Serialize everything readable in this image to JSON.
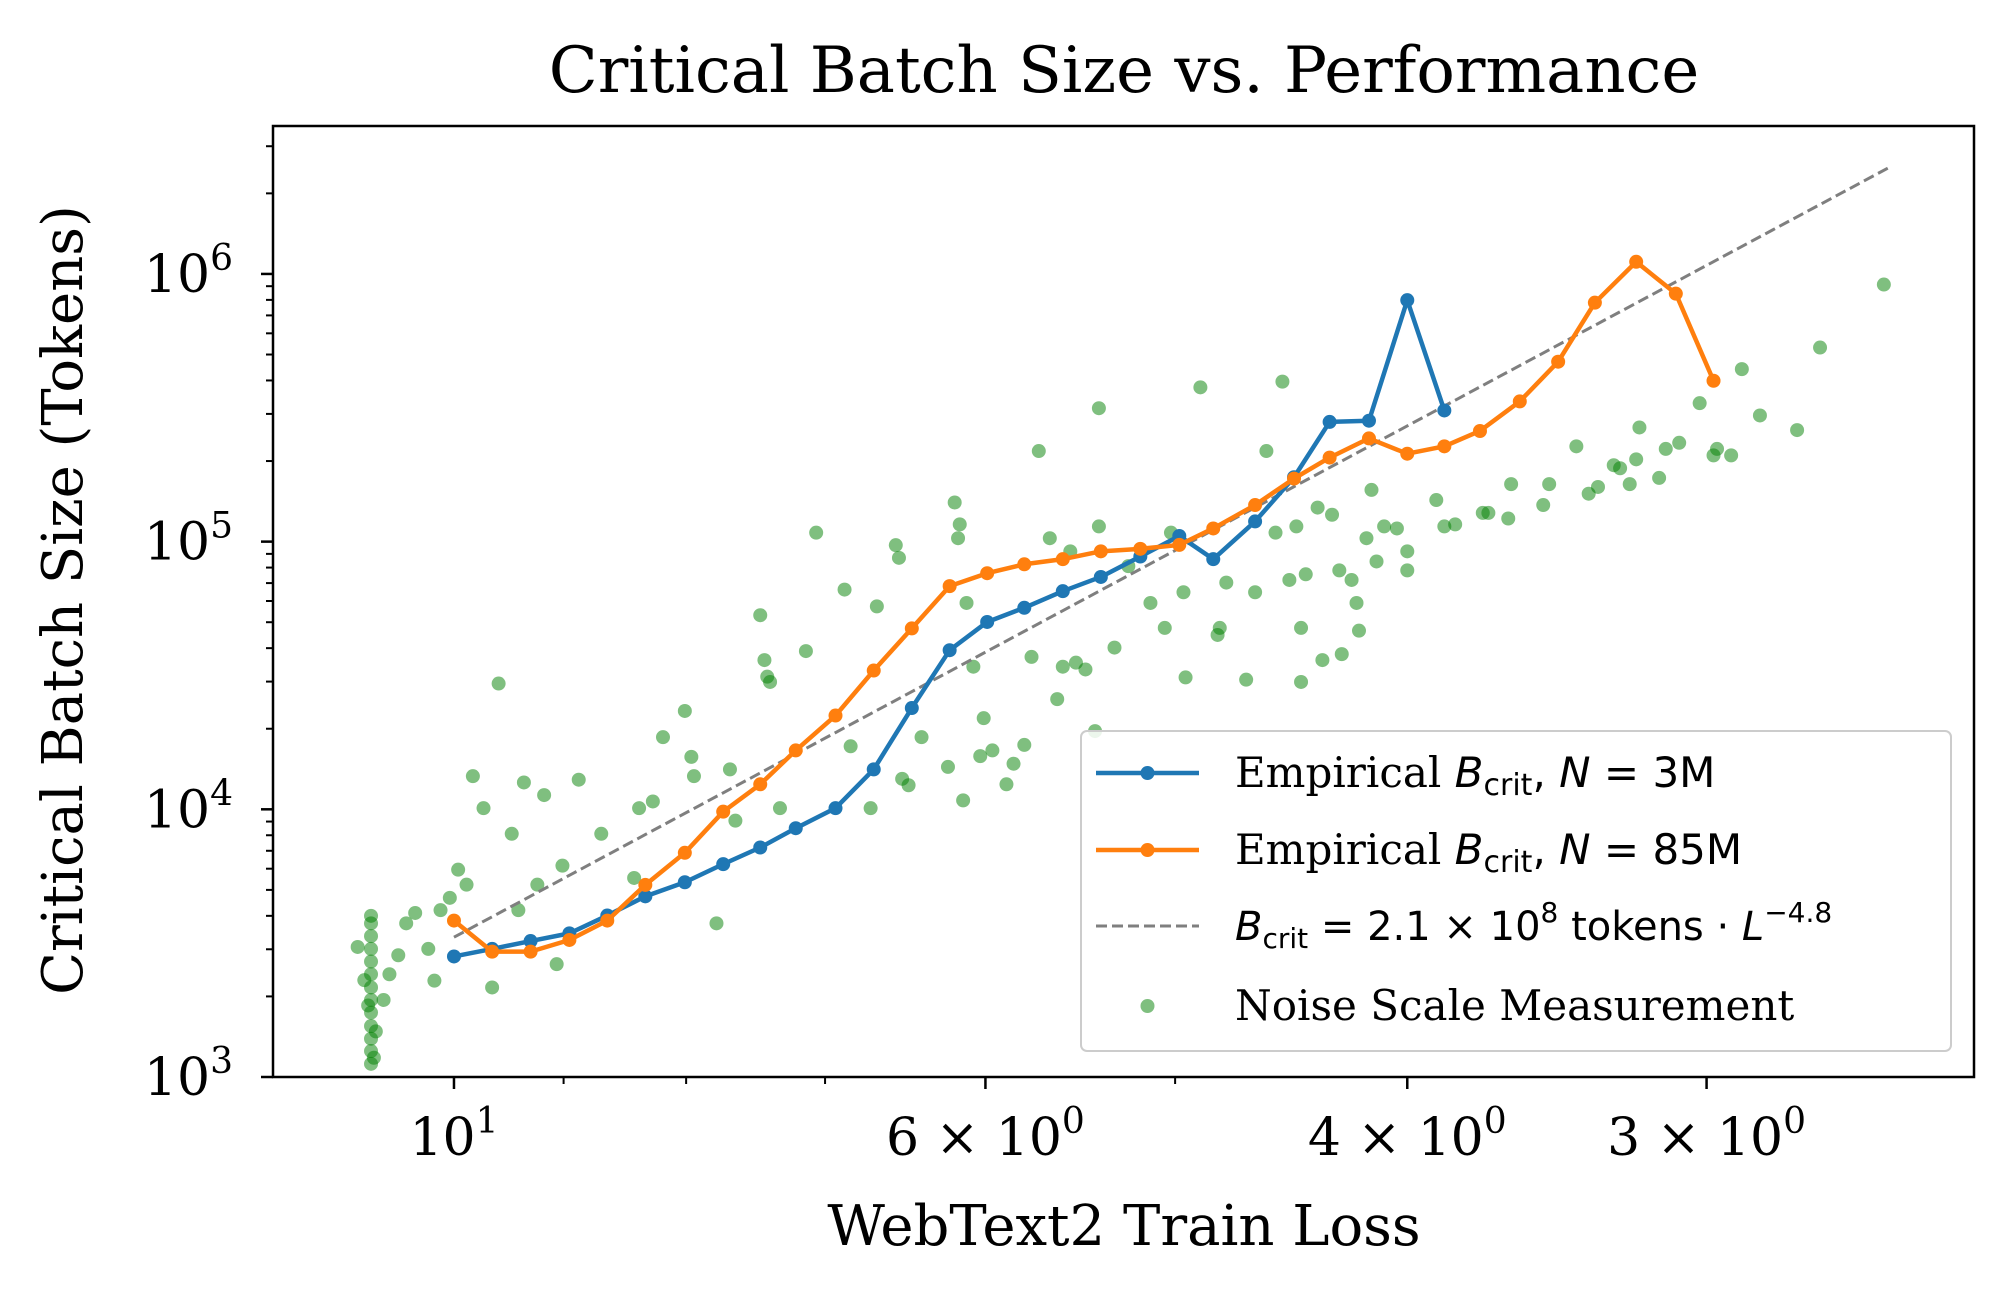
{
  "chart_data": {
    "type": "line",
    "title": "Critical Batch Size vs. Performance",
    "xlabel": "WebText2 Train Loss",
    "ylabel": "Critical Batch Size (Tokens)",
    "xscale": "log",
    "yscale": "log",
    "x_inverted": true,
    "xlim": [
      11.9,
      2.32
    ],
    "ylim": [
      1000,
      3570000
    ],
    "grid": false,
    "legend_position": "lower-right",
    "x_ticks": [
      {
        "value": 10,
        "label": "10",
        "exp": "1",
        "mult": ""
      },
      {
        "value": 6,
        "label": "10",
        "exp": "0",
        "mult": "6 × "
      },
      {
        "value": 4,
        "label": "10",
        "exp": "0",
        "mult": "4 × "
      },
      {
        "value": 3,
        "label": "10",
        "exp": "0",
        "mult": "3 × "
      }
    ],
    "y_ticks": [
      {
        "value": 1000,
        "label": "10",
        "exp": "3"
      },
      {
        "value": 10000,
        "label": "10",
        "exp": "4"
      },
      {
        "value": 100000,
        "label": "10",
        "exp": "5"
      },
      {
        "value": 1000000,
        "label": "10",
        "exp": "6"
      }
    ],
    "series": [
      {
        "kind": "line",
        "color": "#1f77b4",
        "legend": {
          "prefix": "Empirical ",
          "sym": "B",
          "sub": "crit",
          "mid": ", ",
          "sym2": "N",
          "rest": " = 3M"
        },
        "points": [
          [
            10,
            2820
          ],
          [
            9.64,
            3010
          ],
          [
            9.29,
            3220
          ],
          [
            8.95,
            3440
          ],
          [
            8.63,
            4010
          ],
          [
            8.32,
            4730
          ],
          [
            8.01,
            5340
          ],
          [
            7.72,
            6240
          ],
          [
            7.45,
            7200
          ],
          [
            7.2,
            8500
          ],
          [
            6.93,
            10100
          ],
          [
            6.68,
            14100
          ],
          [
            6.44,
            23900
          ],
          [
            6.21,
            39300
          ],
          [
            5.99,
            50100
          ],
          [
            5.78,
            56600
          ],
          [
            5.57,
            65300
          ],
          [
            5.37,
            73800
          ],
          [
            5.17,
            88000
          ],
          [
            4.98,
            105000
          ],
          [
            4.82,
            86000
          ],
          [
            4.63,
            119000
          ],
          [
            4.46,
            174000
          ],
          [
            4.31,
            280000
          ],
          [
            4.15,
            283000
          ],
          [
            4.0,
            798000
          ],
          [
            3.86,
            309000
          ]
        ]
      },
      {
        "kind": "line",
        "color": "#ff7f0e",
        "legend": {
          "prefix": "Empirical ",
          "sym": "B",
          "sub": "crit",
          "mid": ", ",
          "sym2": "N",
          "rest": " = 85M"
        },
        "points": [
          [
            10,
            3840
          ],
          [
            9.64,
            2940
          ],
          [
            9.29,
            2940
          ],
          [
            8.95,
            3250
          ],
          [
            8.63,
            3840
          ],
          [
            8.32,
            5220
          ],
          [
            8.01,
            6880
          ],
          [
            7.72,
            9800
          ],
          [
            7.45,
            12400
          ],
          [
            7.2,
            16600
          ],
          [
            6.93,
            22400
          ],
          [
            6.68,
            33000
          ],
          [
            6.44,
            47400
          ],
          [
            6.21,
            68200
          ],
          [
            5.99,
            76200
          ],
          [
            5.78,
            82300
          ],
          [
            5.57,
            86000
          ],
          [
            5.37,
            92000
          ],
          [
            5.17,
            94000
          ],
          [
            4.98,
            97200
          ],
          [
            4.82,
            112000
          ],
          [
            4.63,
            137000
          ],
          [
            4.46,
            172000
          ],
          [
            4.31,
            206000
          ],
          [
            4.15,
            243000
          ],
          [
            4.0,
            213000
          ],
          [
            3.86,
            227000
          ],
          [
            3.73,
            259000
          ],
          [
            3.59,
            334000
          ],
          [
            3.46,
            470000
          ],
          [
            3.34,
            781000
          ],
          [
            3.21,
            1110000
          ],
          [
            3.09,
            844000
          ],
          [
            2.98,
            399000
          ]
        ]
      },
      {
        "kind": "fit",
        "color": "#7f7f7f",
        "coefficient": 210000000.0,
        "exponent": -4.8,
        "x_range": [
          10,
          2.51
        ],
        "legend": {
          "sym": "B",
          "sub": "crit",
          "eq": " = 2.1 × 10",
          "pow": "8",
          "tok": " tokens · ",
          "sym2": "L",
          "pow2": "−4.8"
        }
      },
      {
        "kind": "scatter",
        "color": "#008000",
        "legend": {
          "text": "Noise Scale Measurement"
        },
        "points": [
          [
            10.83,
            1120
          ],
          [
            10.83,
            1250
          ],
          [
            10.83,
            1390
          ],
          [
            10.83,
            1550
          ],
          [
            10.83,
            1740
          ],
          [
            10.83,
            1940
          ],
          [
            10.83,
            2160
          ],
          [
            10.83,
            2420
          ],
          [
            10.83,
            2700
          ],
          [
            10.83,
            3010
          ],
          [
            10.83,
            3360
          ],
          [
            10.83,
            3750
          ],
          [
            10.83,
            4000
          ],
          [
            10.97,
            3060
          ],
          [
            10.9,
            2300
          ],
          [
            10.8,
            1180
          ],
          [
            10.78,
            1480
          ],
          [
            10.86,
            1850
          ],
          [
            10.7,
            1940
          ],
          [
            10.64,
            2420
          ],
          [
            10.55,
            2850
          ],
          [
            10.47,
            3750
          ],
          [
            10.38,
            4100
          ],
          [
            10.25,
            3010
          ],
          [
            10.19,
            2290
          ],
          [
            10.13,
            4200
          ],
          [
            10.04,
            4670
          ],
          [
            9.96,
            5950
          ],
          [
            9.88,
            5230
          ],
          [
            9.82,
            13300
          ],
          [
            9.72,
            10100
          ],
          [
            9.64,
            2160
          ],
          [
            9.58,
            29500
          ],
          [
            9.46,
            8100
          ],
          [
            9.4,
            4200
          ],
          [
            9.35,
            12600
          ],
          [
            9.23,
            5230
          ],
          [
            9.17,
            11300
          ],
          [
            9.06,
            2640
          ],
          [
            9.01,
            6160
          ],
          [
            8.87,
            12900
          ],
          [
            8.68,
            8100
          ],
          [
            8.41,
            5540
          ],
          [
            8.37,
            10100
          ],
          [
            8.26,
            10700
          ],
          [
            8.18,
            18600
          ],
          [
            8.01,
            23300
          ],
          [
            7.96,
            15700
          ],
          [
            7.94,
            13300
          ],
          [
            7.77,
            3750
          ],
          [
            7.67,
            14100
          ],
          [
            7.63,
            9070
          ],
          [
            7.45,
            53100
          ],
          [
            7.42,
            36100
          ],
          [
            7.4,
            31300
          ],
          [
            7.38,
            29900
          ],
          [
            7.31,
            10100
          ],
          [
            7.13,
            39000
          ],
          [
            7.06,
            108000
          ],
          [
            6.87,
            66200
          ],
          [
            6.83,
            17200
          ],
          [
            6.7,
            10100
          ],
          [
            6.66,
            57300
          ],
          [
            6.54,
            97000
          ],
          [
            6.52,
            87000
          ],
          [
            6.5,
            13000
          ],
          [
            6.46,
            12300
          ],
          [
            6.38,
            18600
          ],
          [
            6.22,
            14400
          ],
          [
            6.18,
            140000
          ],
          [
            6.16,
            103000
          ],
          [
            6.15,
            116000
          ],
          [
            6.13,
            10800
          ],
          [
            6.11,
            59000
          ],
          [
            6.07,
            34100
          ],
          [
            6.03,
            15800
          ],
          [
            6.01,
            21900
          ],
          [
            5.96,
            16600
          ],
          [
            5.88,
            12400
          ],
          [
            5.84,
            14800
          ],
          [
            5.78,
            17400
          ],
          [
            5.74,
            37100
          ],
          [
            5.7,
            218000
          ],
          [
            5.64,
            103000
          ],
          [
            5.6,
            25800
          ],
          [
            5.57,
            34100
          ],
          [
            5.53,
            92000
          ],
          [
            5.5,
            35300
          ],
          [
            5.45,
            33300
          ],
          [
            5.4,
            19600
          ],
          [
            5.38,
            114000
          ],
          [
            5.38,
            315000
          ],
          [
            5.3,
            40200
          ],
          [
            5.23,
            81000
          ],
          [
            5.12,
            59000
          ],
          [
            5.05,
            47600
          ],
          [
            5.02,
            108000
          ],
          [
            4.96,
            64700
          ],
          [
            4.95,
            31100
          ],
          [
            4.88,
            377000
          ],
          [
            4.8,
            44800
          ],
          [
            4.79,
            47600
          ],
          [
            4.76,
            70300
          ],
          [
            4.67,
            30500
          ],
          [
            4.63,
            64700
          ],
          [
            4.58,
            218000
          ],
          [
            4.54,
            108000
          ],
          [
            4.51,
            396000
          ],
          [
            4.48,
            71900
          ],
          [
            4.45,
            114000
          ],
          [
            4.43,
            47600
          ],
          [
            4.43,
            29900
          ],
          [
            4.41,
            75500
          ],
          [
            4.36,
            134000
          ],
          [
            4.34,
            36100
          ],
          [
            4.3,
            126000
          ],
          [
            4.27,
            78100
          ],
          [
            4.26,
            38000
          ],
          [
            4.22,
            71900
          ],
          [
            4.2,
            59000
          ],
          [
            4.19,
            46500
          ],
          [
            4.16,
            103000
          ],
          [
            4.14,
            156000
          ],
          [
            4.12,
            84300
          ],
          [
            4.09,
            114000
          ],
          [
            4.04,
            112000
          ],
          [
            4.0,
            92000
          ],
          [
            4.0,
            78100
          ],
          [
            3.89,
            143000
          ],
          [
            3.86,
            114000
          ],
          [
            3.82,
            116000
          ],
          [
            3.72,
            128000
          ],
          [
            3.7,
            128000
          ],
          [
            3.63,
            122000
          ],
          [
            3.62,
            164000
          ],
          [
            3.51,
            137000
          ],
          [
            3.49,
            164000
          ],
          [
            3.4,
            227000
          ],
          [
            3.36,
            151000
          ],
          [
            3.33,
            160000
          ],
          [
            3.28,
            193000
          ],
          [
            3.26,
            188000
          ],
          [
            3.23,
            164000
          ],
          [
            3.21,
            203000
          ],
          [
            3.2,
            267000
          ],
          [
            3.14,
            173000
          ],
          [
            3.12,
            222000
          ],
          [
            3.08,
            234000
          ],
          [
            3.02,
            329000
          ],
          [
            2.98,
            210000
          ],
          [
            2.97,
            222000
          ],
          [
            2.93,
            210000
          ],
          [
            2.9,
            441000
          ],
          [
            2.85,
            296000
          ],
          [
            2.75,
            261000
          ],
          [
            2.69,
            531000
          ],
          [
            2.53,
            913000
          ]
        ]
      }
    ]
  }
}
